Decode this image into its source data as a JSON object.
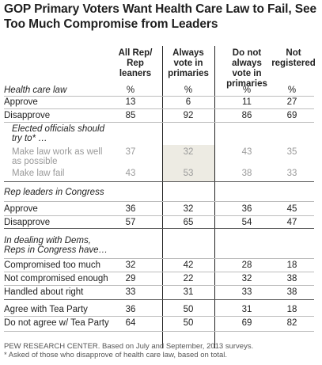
{
  "title": "GOP Primary Voters Want Health Care Law to Fail, See Too Much Compromise from Leaders",
  "chart_data": {
    "type": "table",
    "columns": [
      "All Rep/\nRep\nleaners",
      "Always\nvote in\nprimaries",
      "Do not\nalways\nvote in\nprimaries",
      "Not\nregistered"
    ],
    "rows": [
      {
        "label": "Health care law",
        "values": [
          "%",
          "%",
          "%",
          "%"
        ],
        "kind": "section"
      },
      {
        "label": "Approve",
        "values": [
          "13",
          "6",
          "11",
          "27"
        ],
        "kind": "data"
      },
      {
        "label": "Disapprove",
        "values": [
          "85",
          "92",
          "86",
          "69"
        ],
        "kind": "data"
      },
      {
        "label": "Elected officials should",
        "values": [
          "",
          "",
          "",
          ""
        ],
        "kind": "section-indent"
      },
      {
        "label": "try to* …",
        "values": [
          "",
          "",
          "",
          ""
        ],
        "kind": "section-indent"
      },
      {
        "label": "Make law work as well",
        "values": [
          "37",
          "32",
          "43",
          "35"
        ],
        "kind": "gray"
      },
      {
        "label": "as possible",
        "values": [
          "",
          "",
          "",
          ""
        ],
        "kind": "gray"
      },
      {
        "label": "Make law fail",
        "values": [
          "43",
          "53",
          "38",
          "33"
        ],
        "kind": "gray"
      },
      {
        "label": "Rep leaders in Congress",
        "values": [
          "",
          "",
          "",
          ""
        ],
        "kind": "section"
      },
      {
        "label": "Approve",
        "values": [
          "36",
          "32",
          "36",
          "45"
        ],
        "kind": "data"
      },
      {
        "label": "Disapprove",
        "values": [
          "57",
          "65",
          "54",
          "47"
        ],
        "kind": "data"
      },
      {
        "label": "In dealing with Dems,",
        "values": [
          "",
          "",
          "",
          ""
        ],
        "kind": "section"
      },
      {
        "label": "Reps in Congress have…",
        "values": [
          "",
          "",
          "",
          ""
        ],
        "kind": "section"
      },
      {
        "label": "Compromised too much",
        "values": [
          "32",
          "42",
          "28",
          "18"
        ],
        "kind": "data"
      },
      {
        "label": "Not compromised enough",
        "values": [
          "29",
          "22",
          "32",
          "38"
        ],
        "kind": "data"
      },
      {
        "label": "Handled about right",
        "values": [
          "33",
          "31",
          "33",
          "38"
        ],
        "kind": "data"
      },
      {
        "label": "Agree with Tea Party",
        "values": [
          "36",
          "50",
          "31",
          "18"
        ],
        "kind": "data"
      },
      {
        "label": "Do not agree w/ Tea Party",
        "values": [
          "64",
          "50",
          "69",
          "82"
        ],
        "kind": "data"
      }
    ]
  },
  "notes": {
    "source": "PEW RESEARCH CENTER. Based on July and September, 2013 surveys.",
    "footnote": "* Asked of those who disapprove of health care law, based on total."
  },
  "colors": {
    "shade": "#edebe3",
    "gray_text": "#9a9a9a"
  }
}
